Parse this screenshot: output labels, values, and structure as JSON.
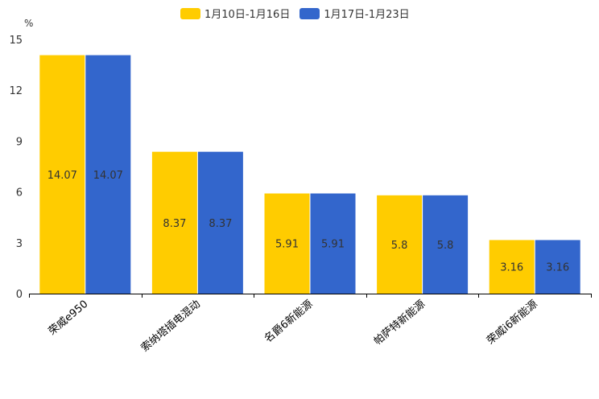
{
  "chart_data": {
    "type": "bar",
    "ylabel": "%",
    "ylim": [
      0,
      15
    ],
    "yticks": [
      0,
      3,
      6,
      9,
      12,
      15
    ],
    "categories": [
      "荣威e950",
      "索纳塔插电混动",
      "名爵6新能源",
      "帕萨特新能源",
      "荣威i6新能源"
    ],
    "series": [
      {
        "name": "1月10日-1月16日",
        "color": "#FFCC00",
        "values": [
          14.07,
          8.37,
          5.91,
          5.8,
          3.16
        ]
      },
      {
        "name": "1月17日-1月23日",
        "color": "#3366CC",
        "values": [
          14.07,
          8.37,
          5.91,
          5.8,
          3.16
        ]
      }
    ],
    "legend_position": "top-center"
  }
}
